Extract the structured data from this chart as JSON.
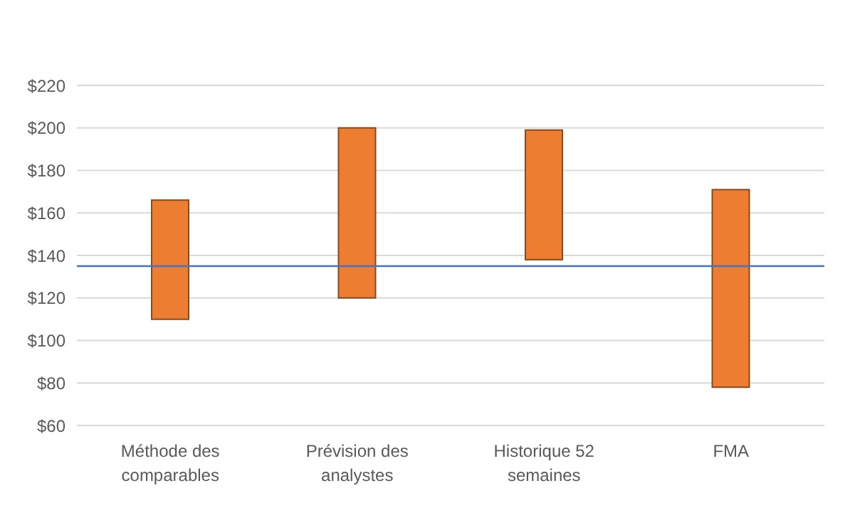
{
  "chart_data": {
    "type": "bar",
    "categories": [
      "Méthode des comparables",
      "Prévision des analystes",
      "Historique 52 semaines",
      "FMA"
    ],
    "base": [
      110,
      120,
      138,
      78
    ],
    "values": [
      56,
      80,
      61,
      93
    ],
    "color": "#ed7d31",
    "ylim": [
      60,
      220
    ],
    "yticks": [
      {
        "value": 60,
        "label": "$60"
      },
      {
        "value": 80,
        "label": "$80"
      },
      {
        "value": 100,
        "label": "$100"
      },
      {
        "value": 120,
        "label": "$120"
      },
      {
        "value": 140,
        "label": "$140"
      },
      {
        "value": 160,
        "label": "$160"
      },
      {
        "value": 180,
        "label": "$180"
      },
      {
        "value": 200,
        "label": "$200"
      },
      {
        "value": 220,
        "label": "$220"
      }
    ],
    "grid": "y",
    "ref_lines": [
      {
        "axis": "y",
        "value": 135,
        "color": "#4472c4"
      }
    ]
  }
}
